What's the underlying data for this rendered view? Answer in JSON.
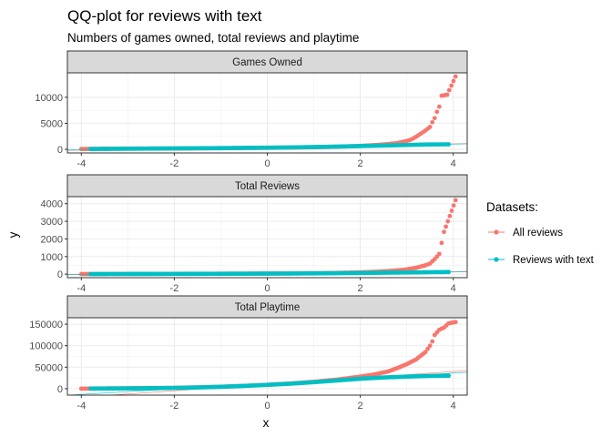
{
  "title": "QQ-plot for reviews with text",
  "subtitle": "Numbers of games owned, total reviews and playtime",
  "chart_data": {
    "type": "scatter",
    "xlabel": "x",
    "ylabel": "y",
    "xlim": [
      -4.3,
      4.3
    ],
    "x_ticks": [
      -4,
      -2,
      0,
      2,
      4
    ],
    "x_tick_labels": [
      "-4",
      "-2",
      "0",
      "2",
      "4"
    ],
    "grid": true,
    "legend": {
      "title": "Datasets:",
      "position": "right",
      "entries": [
        {
          "label": "All reviews",
          "color": "#F8766D"
        },
        {
          "label": "Reviews with text",
          "color": "#00BFC4"
        }
      ]
    },
    "panels": [
      {
        "name": "Games Owned",
        "ylim": [
          -700,
          14700
        ],
        "y_ticks": [
          0,
          5000,
          10000
        ],
        "y_tick_labels": [
          "0",
          "5000",
          "10000"
        ],
        "series": [
          {
            "name": "All reviews",
            "color": "#F8766D",
            "points": [
              [
                -4.0,
                60
              ],
              [
                -3.8,
                80
              ],
              [
                -3.5,
                100
              ],
              [
                -3.0,
                120
              ],
              [
                -2.5,
                140
              ],
              [
                -2.0,
                160
              ],
              [
                -1.5,
                180
              ],
              [
                -1.0,
                210
              ],
              [
                -0.5,
                240
              ],
              [
                0,
                280
              ],
              [
                0.5,
                330
              ],
              [
                1.0,
                400
              ],
              [
                1.5,
                500
              ],
              [
                2.0,
                650
              ],
              [
                2.3,
                800
              ],
              [
                2.6,
                1000
              ],
              [
                2.8,
                1200
              ],
              [
                3.0,
                1600
              ],
              [
                3.1,
                1900
              ],
              [
                3.2,
                2400
              ],
              [
                3.3,
                3000
              ],
              [
                3.4,
                3600
              ],
              [
                3.5,
                4300
              ],
              [
                3.55,
                5200
              ],
              [
                3.6,
                6000
              ],
              [
                3.65,
                7200
              ],
              [
                3.7,
                8200
              ],
              [
                3.75,
                10300
              ],
              [
                3.87,
                10500
              ],
              [
                4.05,
                14000
              ]
            ],
            "qq_line": [
              [
                -4.3,
                -200
              ],
              [
                4.3,
                1100
              ]
            ]
          },
          {
            "name": "Reviews with text",
            "color": "#00BFC4",
            "points": [
              [
                -3.8,
                60
              ],
              [
                -3.5,
                80
              ],
              [
                -3.0,
                110
              ],
              [
                -2.5,
                140
              ],
              [
                -2.0,
                170
              ],
              [
                -1.5,
                200
              ],
              [
                -1.0,
                230
              ],
              [
                -0.5,
                270
              ],
              [
                0,
                310
              ],
              [
                0.5,
                360
              ],
              [
                1.0,
                430
              ],
              [
                1.5,
                520
              ],
              [
                2.0,
                620
              ],
              [
                2.5,
                720
              ],
              [
                3.0,
                830
              ],
              [
                3.5,
                930
              ],
              [
                3.9,
                950
              ]
            ],
            "qq_line": [
              [
                -4.3,
                -150
              ],
              [
                4.3,
                1050
              ]
            ]
          }
        ]
      },
      {
        "name": "Total Reviews",
        "ylim": [
          -200,
          4400
        ],
        "y_ticks": [
          0,
          1000,
          2000,
          3000,
          4000
        ],
        "y_tick_labels": [
          "0",
          "1000",
          "2000",
          "3000",
          "4000"
        ],
        "series": [
          {
            "name": "All reviews",
            "color": "#F8766D",
            "points": [
              [
                -4.0,
                5
              ],
              [
                -3.8,
                6
              ],
              [
                -3.5,
                8
              ],
              [
                -3.0,
                10
              ],
              [
                -2.5,
                12
              ],
              [
                -2.0,
                15
              ],
              [
                -1.5,
                18
              ],
              [
                -1.0,
                22
              ],
              [
                -0.5,
                27
              ],
              [
                0,
                32
              ],
              [
                0.5,
                40
              ],
              [
                1.0,
                50
              ],
              [
                1.5,
                70
              ],
              [
                2.0,
                100
              ],
              [
                2.3,
                130
              ],
              [
                2.6,
                170
              ],
              [
                2.8,
                210
              ],
              [
                3.0,
                270
              ],
              [
                3.2,
                360
              ],
              [
                3.4,
                500
              ],
              [
                3.5,
                600
              ],
              [
                3.6,
                850
              ],
              [
                3.65,
                1000
              ],
              [
                3.7,
                1150
              ],
              [
                3.8,
                2400
              ],
              [
                4.05,
                4200
              ]
            ],
            "qq_line": [
              [
                -4.3,
                -30
              ],
              [
                4.3,
                140
              ]
            ]
          },
          {
            "name": "Reviews with text",
            "color": "#00BFC4",
            "points": [
              [
                -3.8,
                5
              ],
              [
                -3.5,
                7
              ],
              [
                -3.0,
                9
              ],
              [
                -2.5,
                11
              ],
              [
                -2.0,
                14
              ],
              [
                -1.5,
                17
              ],
              [
                -1.0,
                20
              ],
              [
                -0.5,
                25
              ],
              [
                0,
                30
              ],
              [
                0.5,
                36
              ],
              [
                1.0,
                44
              ],
              [
                1.5,
                54
              ],
              [
                2.0,
                66
              ],
              [
                2.5,
                80
              ],
              [
                3.0,
                95
              ],
              [
                3.5,
                110
              ],
              [
                3.9,
                120
              ]
            ],
            "qq_line": [
              [
                -4.3,
                -20
              ],
              [
                4.3,
                130
              ]
            ]
          }
        ]
      },
      {
        "name": "Total Playtime",
        "ylim": [
          -15000,
          165000
        ],
        "y_ticks": [
          0,
          50000,
          100000,
          150000
        ],
        "y_tick_labels": [
          "0",
          "50000",
          "100000",
          "150000"
        ],
        "series": [
          {
            "name": "All reviews",
            "color": "#F8766D",
            "points": [
              [
                -4.0,
                100
              ],
              [
                -3.8,
                200
              ],
              [
                -3.5,
                400
              ],
              [
                -3.0,
                800
              ],
              [
                -2.5,
                1200
              ],
              [
                -2.0,
                1800
              ],
              [
                -1.5,
                3000
              ],
              [
                -1.0,
                4500
              ],
              [
                -0.5,
                6500
              ],
              [
                0,
                9000
              ],
              [
                0.5,
                12000
              ],
              [
                1.0,
                16000
              ],
              [
                1.5,
                21000
              ],
              [
                2.0,
                28000
              ],
              [
                2.3,
                33000
              ],
              [
                2.6,
                40000
              ],
              [
                2.8,
                48000
              ],
              [
                3.0,
                57000
              ],
              [
                3.2,
                68000
              ],
              [
                3.4,
                85000
              ],
              [
                3.5,
                100000
              ],
              [
                3.55,
                110000
              ],
              [
                3.6,
                125000
              ],
              [
                3.7,
                137000
              ],
              [
                3.8,
                142000
              ],
              [
                3.9,
                152000
              ],
              [
                4.05,
                155000
              ]
            ],
            "qq_line": [
              [
                -4.3,
                -22000
              ],
              [
                4.3,
                42000
              ]
            ]
          },
          {
            "name": "Reviews with text",
            "color": "#00BFC4",
            "points": [
              [
                -3.8,
                200
              ],
              [
                -3.5,
                400
              ],
              [
                -3.0,
                700
              ],
              [
                -2.5,
                1100
              ],
              [
                -2.0,
                1700
              ],
              [
                -1.5,
                2800
              ],
              [
                -1.0,
                4300
              ],
              [
                -0.5,
                6300
              ],
              [
                0,
                8800
              ],
              [
                0.5,
                11500
              ],
              [
                1.0,
                15000
              ],
              [
                1.5,
                19000
              ],
              [
                2.0,
                23000
              ],
              [
                2.5,
                26000
              ],
              [
                3.0,
                28000
              ],
              [
                3.5,
                29500
              ],
              [
                3.9,
                30000
              ]
            ],
            "qq_line": [
              [
                -4.3,
                -15000
              ],
              [
                4.3,
                38000
              ]
            ]
          }
        ]
      }
    ]
  }
}
